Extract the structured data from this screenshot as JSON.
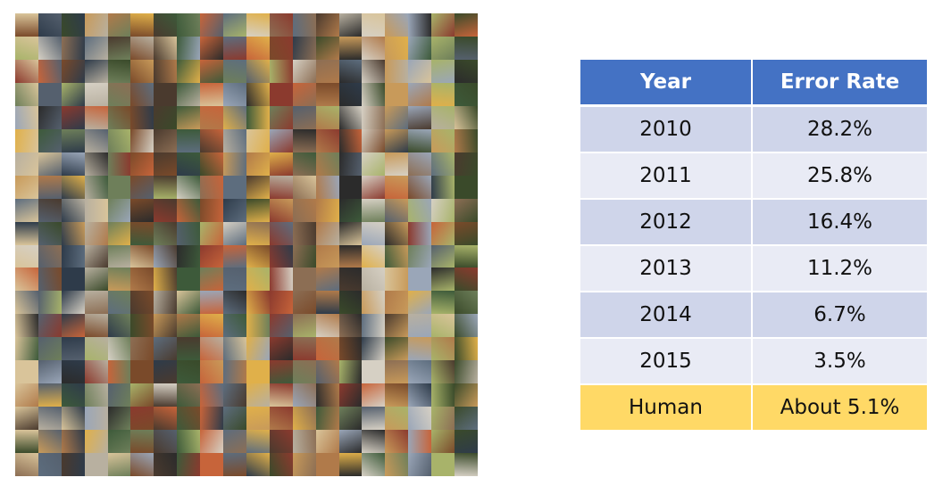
{
  "mosaic": {
    "rows": 20,
    "cols": 20,
    "palette": [
      "#7a4a2a",
      "#c89a5a",
      "#3d5a3a",
      "#a8b36a",
      "#5d6d7e",
      "#d9c49a",
      "#8b3a2e",
      "#2e3b4a",
      "#b07a4a",
      "#6e7f5a",
      "#d6d0c4",
      "#4a3a2e",
      "#9aa6b8",
      "#c7643a",
      "#3a4a2a",
      "#e0b04a",
      "#55606e",
      "#8c6e54",
      "#b8b0a0",
      "#2b2b2b"
    ]
  },
  "table": {
    "headers": [
      "Year",
      "Error Rate"
    ],
    "rows": [
      {
        "year": "2010",
        "rate": "28.2%"
      },
      {
        "year": "2011",
        "rate": "25.8%"
      },
      {
        "year": "2012",
        "rate": "16.4%"
      },
      {
        "year": "2013",
        "rate": "11.2%"
      },
      {
        "year": "2014",
        "rate": "6.7%"
      },
      {
        "year": "2015",
        "rate": "3.5%"
      },
      {
        "year": "Human",
        "rate": "About 5.1%"
      }
    ],
    "colors": {
      "header": "#4472c4",
      "row_dark": "#cfd5ea",
      "row_light": "#e9ebf5",
      "human": "#ffd966"
    }
  }
}
